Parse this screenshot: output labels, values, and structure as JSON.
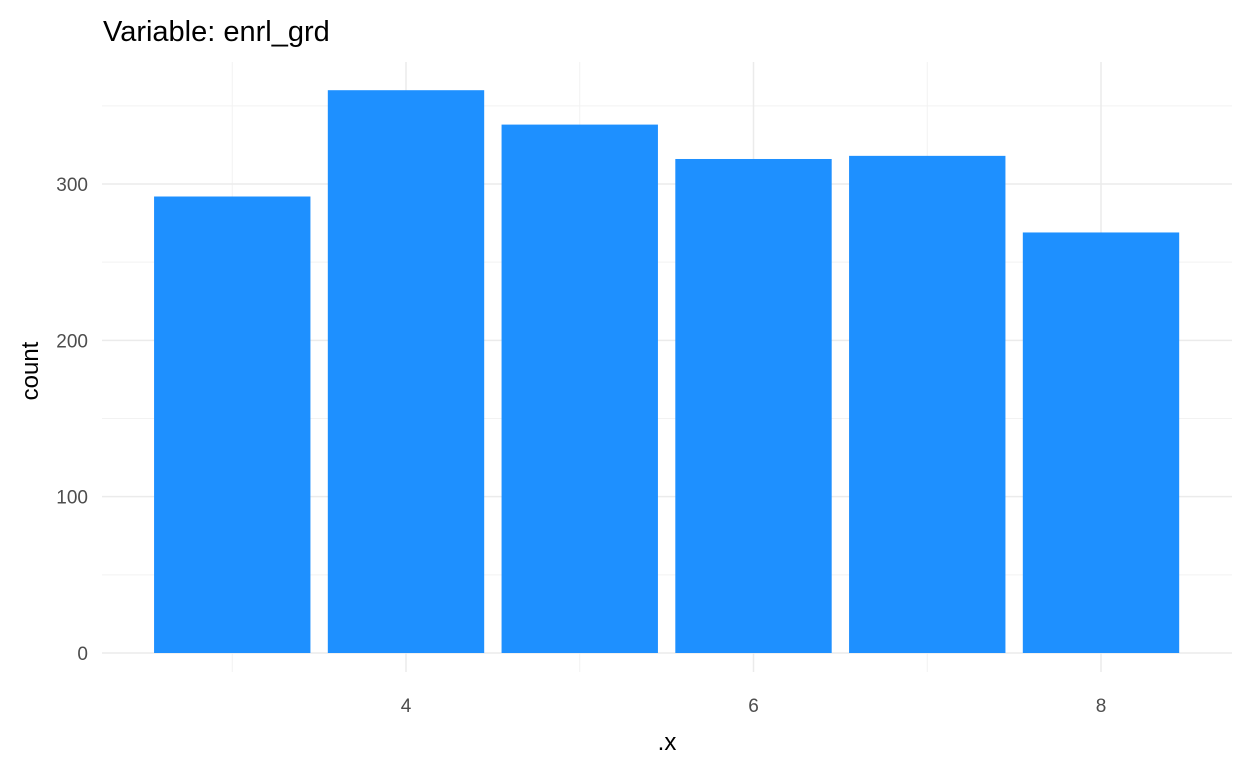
{
  "chart_data": {
    "type": "bar",
    "title": "Variable: enrl_grd",
    "xlabel": ".x",
    "ylabel": "count",
    "x": [
      3,
      4,
      5,
      6,
      7,
      8
    ],
    "values": [
      292,
      360,
      338,
      316,
      318,
      269
    ],
    "xlim": [
      2.25,
      8.75
    ],
    "ylim": [
      0,
      378
    ],
    "x_ticks": [
      4,
      6,
      8
    ],
    "x_tick_labels": [
      "4",
      "6",
      "8"
    ],
    "y_ticks": [
      0,
      100,
      200,
      300
    ],
    "y_tick_labels": [
      "0",
      "100",
      "200",
      "300"
    ],
    "bar_color": "#1E90FF",
    "grid": true,
    "grid_major_color": "#EBEBEB",
    "grid_minor_color": "#F2F2F2",
    "legend": "none"
  }
}
